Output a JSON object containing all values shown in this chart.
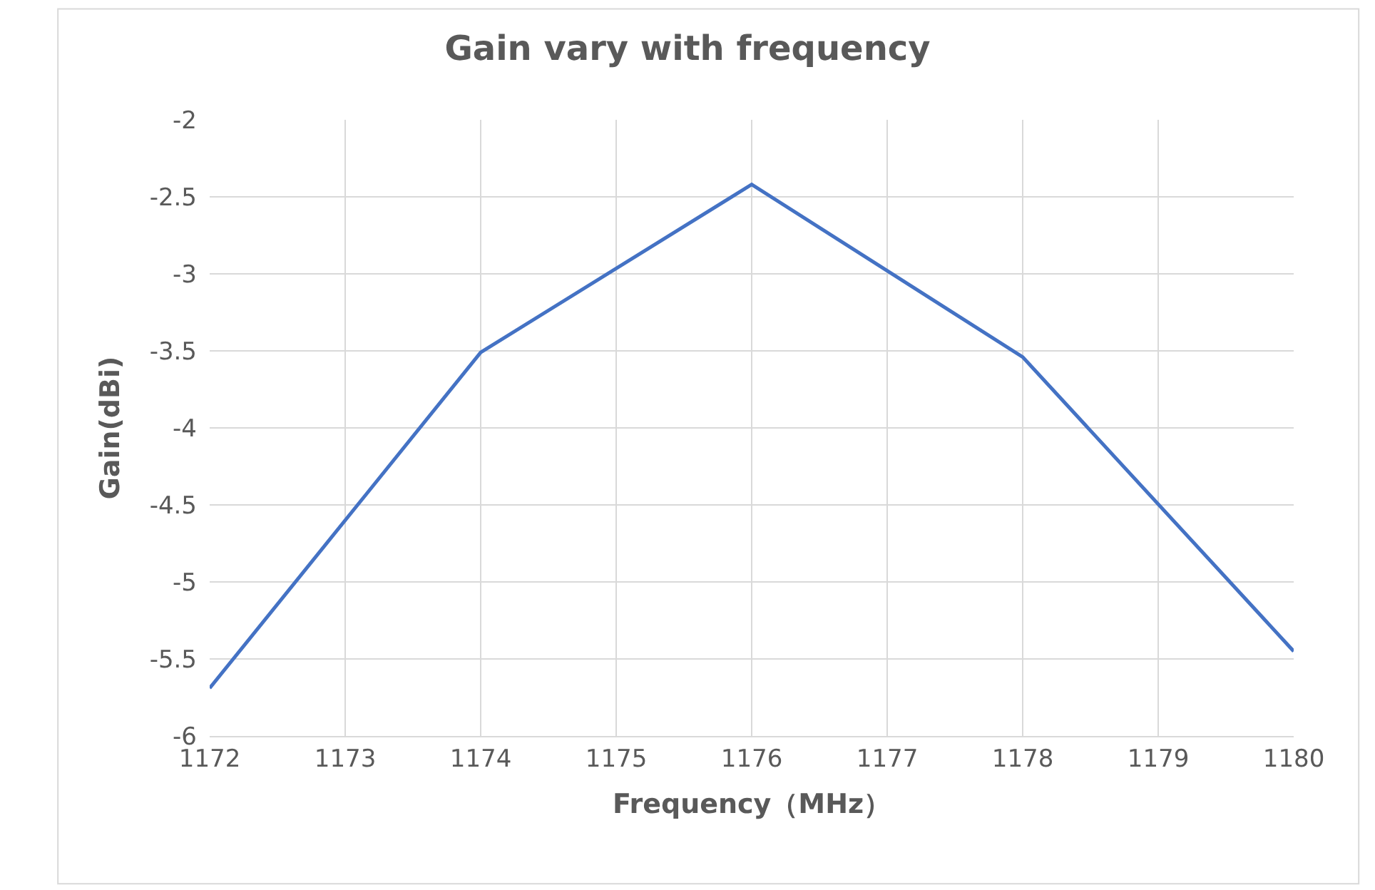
{
  "chart_data": {
    "type": "line",
    "title": "Gain vary with frequency",
    "xlabel": "Frequency（MHz）",
    "ylabel": "Gain(dBi)",
    "x": [
      1172,
      1174,
      1176,
      1178,
      1180
    ],
    "series": [
      {
        "color": "#4472c4",
        "values": [
          -5.69,
          -3.51,
          -2.42,
          -3.54,
          -5.45
        ]
      }
    ],
    "xlim": [
      1172,
      1180
    ],
    "xticks": [
      1172,
      1173,
      1174,
      1175,
      1176,
      1177,
      1178,
      1179,
      1180
    ],
    "ylim": [
      -6,
      -2
    ],
    "yticks": [
      -6,
      -5.5,
      -5,
      -4.5,
      -4,
      -3.5,
      -3,
      -2.5,
      -2
    ],
    "grid": true,
    "legend": false,
    "marker": "none",
    "line_style": "solid"
  }
}
